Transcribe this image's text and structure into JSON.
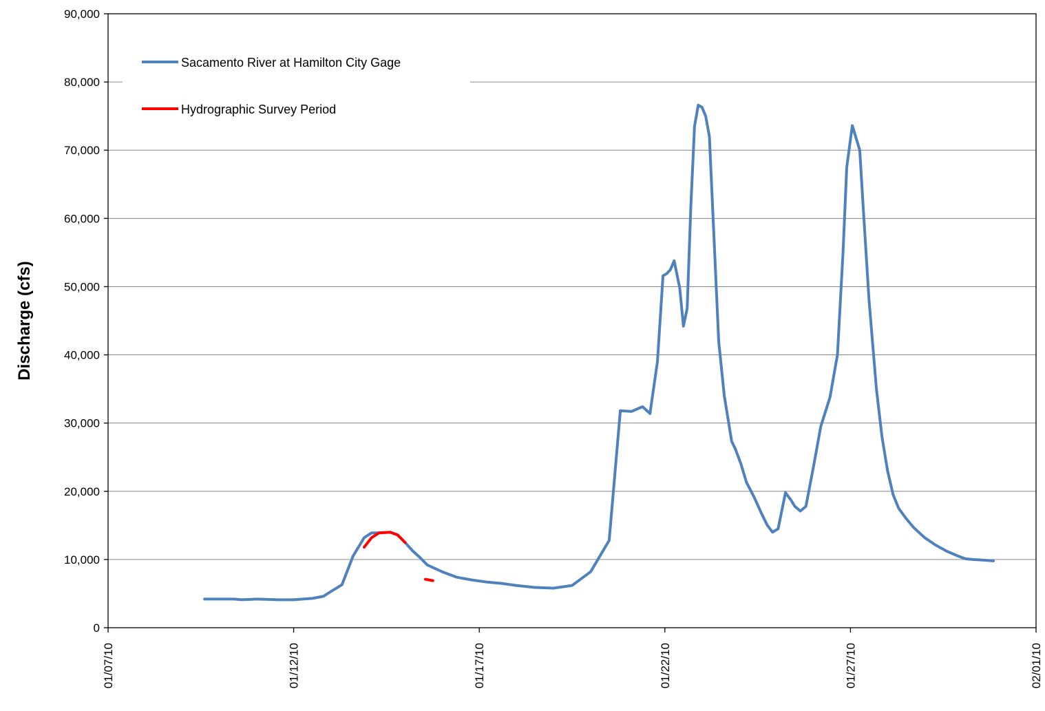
{
  "chart_data": {
    "type": "line",
    "title": "",
    "xlabel": "",
    "ylabel": "Discharge (cfs)",
    "ylim": [
      0,
      90000
    ],
    "y_ticks": [
      0,
      10000,
      20000,
      30000,
      40000,
      50000,
      60000,
      70000,
      80000,
      90000
    ],
    "y_tick_labels": [
      "0",
      "10,000",
      "20,000",
      "30,000",
      "40,000",
      "50,000",
      "60,000",
      "70,000",
      "80,000",
      "90,000"
    ],
    "xlim": [
      "01/07/10",
      "02/01/10"
    ],
    "x_ticks": [
      "01/07/10",
      "01/12/10",
      "01/17/10",
      "01/22/10",
      "01/27/10",
      "02/01/10"
    ],
    "grid": "horizontal",
    "legend_position": "top-left",
    "colors": {
      "flow": "#4F81BD",
      "survey": "#FF0000",
      "grid": "#868686",
      "axis": "#000000"
    },
    "series": [
      {
        "name": "Sacamento River at Hamilton City Gage",
        "x_unit": "days since 01/07/10",
        "x": [
          2.6,
          3.4,
          3.6,
          4.0,
          4.6,
          5.0,
          5.5,
          5.8,
          6.0,
          6.3,
          6.6,
          6.9,
          7.1,
          7.3,
          7.6,
          7.8,
          8.0,
          8.2,
          8.4,
          8.6,
          9.0,
          9.4,
          9.8,
          10.2,
          10.6,
          11.0,
          11.5,
          12.0,
          12.5,
          13.0,
          13.5,
          13.8,
          14.1,
          14.4,
          14.6,
          14.8,
          14.95,
          15.05,
          15.15,
          15.25,
          15.4,
          15.5,
          15.6,
          15.7,
          15.8,
          15.9,
          16.0,
          16.1,
          16.2,
          16.3,
          16.45,
          16.6,
          16.8,
          16.9,
          17.05,
          17.2,
          17.4,
          17.6,
          17.75,
          17.9,
          18.05,
          18.25,
          18.4,
          18.5,
          18.65,
          18.8,
          19.0,
          19.2,
          19.45,
          19.65,
          19.8,
          19.9,
          20.05,
          20.25,
          20.35,
          20.5,
          20.7,
          20.85,
          21.0,
          21.15,
          21.3,
          21.5,
          21.7,
          22.0,
          22.3,
          22.6,
          22.9,
          23.1,
          23.3,
          23.6,
          23.85
        ],
        "y": [
          4200,
          4200,
          4100,
          4200,
          4100,
          4100,
          4300,
          4600,
          5300,
          6300,
          10500,
          13200,
          13900,
          13900,
          14000,
          13600,
          12500,
          11300,
          10300,
          9200,
          8200,
          7400,
          7000,
          6700,
          6500,
          6200,
          5900,
          5800,
          6200,
          8200,
          12800,
          31800,
          31700,
          32400,
          31400,
          39000,
          51600,
          51900,
          52500,
          53800,
          49800,
          44200,
          46800,
          61700,
          73500,
          76600,
          76300,
          75000,
          72000,
          60000,
          42000,
          34000,
          27300,
          26200,
          24000,
          21300,
          19200,
          16800,
          15100,
          14000,
          14500,
          19800,
          18700,
          17800,
          17100,
          17800,
          23500,
          29500,
          33800,
          40000,
          55000,
          67500,
          73600,
          70000,
          61000,
          48000,
          35000,
          28000,
          23000,
          19500,
          17500,
          16000,
          14700,
          13200,
          12100,
          11200,
          10500,
          10100,
          10000,
          9900,
          9800
        ]
      },
      {
        "name": "Hydrographic Survey Period",
        "x_unit": "days since 01/07/10",
        "segments": [
          {
            "x": [
              6.9,
              7.1,
              7.3,
              7.6,
              7.8,
              8.0
            ],
            "y": [
              11800,
              13200,
              13900,
              14000,
              13600,
              12500
            ]
          },
          {
            "x": [
              8.55,
              8.75
            ],
            "y": [
              7100,
              6900
            ]
          }
        ]
      }
    ]
  }
}
